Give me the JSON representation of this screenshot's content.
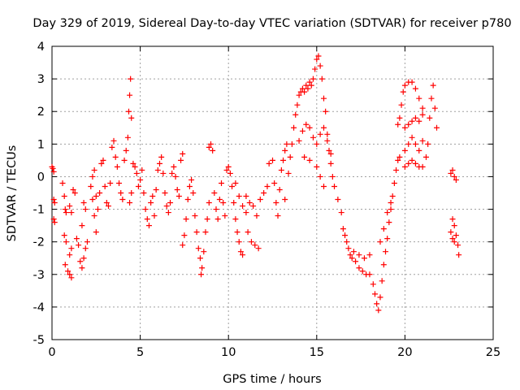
{
  "chart_data": {
    "type": "scatter",
    "title": "Day 329 of 2019, Sidereal Day-to-day VTEC variation (SDTVAR) for receiver p780",
    "xlabel": "GPS time / hours",
    "ylabel": "SDTVAR / TECUs",
    "xlim": [
      0,
      25
    ],
    "ylim": [
      -5,
      4
    ],
    "xticks": [
      0,
      5,
      10,
      15,
      20,
      25
    ],
    "yticks": [
      -5,
      -4,
      -3,
      -2,
      -1,
      0,
      1,
      2,
      3,
      4
    ],
    "xtick_labels": [
      "0",
      "5",
      "10",
      "15",
      "20",
      "25"
    ],
    "ytick_labels": [
      "-5",
      "-4",
      "-3",
      "-2",
      "-1",
      "0",
      "1",
      "2",
      "3",
      "4"
    ],
    "grid": true,
    "marker": "+",
    "color": "#ff0000",
    "series": [
      {
        "name": "SDTVAR",
        "points": [
          [
            0.0,
            0.3
          ],
          [
            0.05,
            0.25
          ],
          [
            0.1,
            0.15
          ],
          [
            0.1,
            -0.7
          ],
          [
            0.15,
            -0.8
          ],
          [
            0.1,
            -1.3
          ],
          [
            0.15,
            -1.4
          ],
          [
            0.6,
            -0.2
          ],
          [
            0.7,
            -0.6
          ],
          [
            0.75,
            -1.0
          ],
          [
            0.8,
            -1.1
          ],
          [
            0.7,
            -1.8
          ],
          [
            0.8,
            -2.0
          ],
          [
            0.75,
            -2.7
          ],
          [
            0.9,
            -2.9
          ],
          [
            1.0,
            -3.0
          ],
          [
            1.1,
            -3.1
          ],
          [
            1.0,
            -2.4
          ],
          [
            1.1,
            -2.2
          ],
          [
            1.0,
            -0.9
          ],
          [
            1.1,
            -1.1
          ],
          [
            1.2,
            -0.4
          ],
          [
            1.3,
            -0.5
          ],
          [
            1.4,
            -1.9
          ],
          [
            1.5,
            -2.1
          ],
          [
            1.6,
            -2.6
          ],
          [
            1.7,
            -2.8
          ],
          [
            1.8,
            -2.5
          ],
          [
            1.9,
            -2.2
          ],
          [
            2.0,
            -2.0
          ],
          [
            1.8,
            -0.8
          ],
          [
            1.9,
            -1.0
          ],
          [
            1.7,
            -1.5
          ],
          [
            2.2,
            -0.3
          ],
          [
            2.3,
            0.0
          ],
          [
            2.4,
            0.2
          ],
          [
            2.3,
            -0.7
          ],
          [
            2.5,
            -0.6
          ],
          [
            2.6,
            -1.0
          ],
          [
            2.4,
            -1.2
          ],
          [
            2.5,
            -1.7
          ],
          [
            2.7,
            -0.5
          ],
          [
            2.8,
            0.4
          ],
          [
            2.9,
            0.5
          ],
          [
            3.0,
            -0.3
          ],
          [
            3.1,
            -0.8
          ],
          [
            3.2,
            -0.9
          ],
          [
            3.3,
            -0.2
          ],
          [
            3.4,
            0.9
          ],
          [
            3.5,
            1.1
          ],
          [
            3.6,
            0.6
          ],
          [
            3.7,
            0.3
          ],
          [
            3.8,
            -0.2
          ],
          [
            3.9,
            -0.5
          ],
          [
            4.0,
            -0.7
          ],
          [
            4.1,
            0.5
          ],
          [
            4.2,
            0.8
          ],
          [
            4.3,
            1.2
          ],
          [
            4.35,
            2.0
          ],
          [
            4.4,
            2.5
          ],
          [
            4.45,
            3.0
          ],
          [
            4.5,
            1.8
          ],
          [
            4.4,
            -0.8
          ],
          [
            4.5,
            -0.5
          ],
          [
            4.6,
            0.4
          ],
          [
            4.7,
            0.3
          ],
          [
            4.8,
            0.1
          ],
          [
            4.9,
            -0.3
          ],
          [
            5.0,
            -0.1
          ],
          [
            5.1,
            0.2
          ],
          [
            5.2,
            -0.5
          ],
          [
            5.3,
            -1.0
          ],
          [
            5.4,
            -1.3
          ],
          [
            5.5,
            -1.5
          ],
          [
            5.6,
            -0.8
          ],
          [
            5.7,
            -0.6
          ],
          [
            5.8,
            -1.2
          ],
          [
            5.9,
            -0.4
          ],
          [
            6.0,
            0.2
          ],
          [
            6.1,
            0.4
          ],
          [
            6.2,
            0.6
          ],
          [
            6.3,
            0.1
          ],
          [
            6.4,
            -0.5
          ],
          [
            6.5,
            -0.9
          ],
          [
            6.6,
            -1.1
          ],
          [
            6.7,
            -0.8
          ],
          [
            6.8,
            0.1
          ],
          [
            6.9,
            0.3
          ],
          [
            7.0,
            0.0
          ],
          [
            7.1,
            -0.4
          ],
          [
            7.2,
            -0.6
          ],
          [
            7.3,
            0.5
          ],
          [
            7.4,
            0.7
          ],
          [
            7.4,
            -2.1
          ],
          [
            7.5,
            -1.8
          ],
          [
            7.6,
            -1.3
          ],
          [
            7.7,
            -0.7
          ],
          [
            7.8,
            -0.3
          ],
          [
            7.9,
            -0.1
          ],
          [
            8.0,
            -0.5
          ],
          [
            8.1,
            -1.2
          ],
          [
            8.2,
            -1.7
          ],
          [
            8.3,
            -2.2
          ],
          [
            8.4,
            -2.5
          ],
          [
            8.45,
            -3.0
          ],
          [
            8.5,
            -2.8
          ],
          [
            8.6,
            -2.3
          ],
          [
            8.7,
            -1.7
          ],
          [
            8.8,
            -1.3
          ],
          [
            8.9,
            -0.8
          ],
          [
            8.9,
            0.9
          ],
          [
            9.0,
            1.0
          ],
          [
            9.1,
            0.8
          ],
          [
            9.2,
            -0.5
          ],
          [
            9.3,
            -1.0
          ],
          [
            9.4,
            -1.3
          ],
          [
            9.5,
            -0.7
          ],
          [
            9.6,
            -0.2
          ],
          [
            9.7,
            -0.8
          ],
          [
            9.8,
            -1.2
          ],
          [
            9.9,
            0.2
          ],
          [
            10.0,
            0.3
          ],
          [
            10.1,
            0.1
          ],
          [
            10.2,
            -0.3
          ],
          [
            10.3,
            -0.8
          ],
          [
            10.4,
            -1.3
          ],
          [
            10.5,
            -1.7
          ],
          [
            10.6,
            -2.0
          ],
          [
            10.7,
            -2.3
          ],
          [
            10.8,
            -2.4
          ],
          [
            10.4,
            -0.2
          ],
          [
            10.6,
            -0.6
          ],
          [
            10.8,
            -0.9
          ],
          [
            11.0,
            -1.1
          ],
          [
            11.1,
            -1.7
          ],
          [
            11.3,
            -2.0
          ],
          [
            11.5,
            -2.1
          ],
          [
            11.7,
            -2.2
          ],
          [
            11.0,
            -0.6
          ],
          [
            11.2,
            -0.8
          ],
          [
            11.4,
            -0.9
          ],
          [
            11.6,
            -1.2
          ],
          [
            11.8,
            -0.7
          ],
          [
            12.0,
            -0.5
          ],
          [
            12.2,
            -0.3
          ],
          [
            12.3,
            0.4
          ],
          [
            12.5,
            0.5
          ],
          [
            12.6,
            -0.2
          ],
          [
            12.7,
            -0.8
          ],
          [
            12.8,
            -1.2
          ],
          [
            12.9,
            -0.4
          ],
          [
            13.0,
            0.2
          ],
          [
            13.1,
            0.5
          ],
          [
            13.2,
            0.8
          ],
          [
            13.3,
            1.0
          ],
          [
            13.2,
            -0.7
          ],
          [
            13.4,
            0.1
          ],
          [
            13.5,
            0.6
          ],
          [
            13.6,
            1.0
          ],
          [
            13.7,
            1.5
          ],
          [
            13.8,
            1.9
          ],
          [
            13.9,
            2.2
          ],
          [
            14.0,
            2.5
          ],
          [
            14.1,
            2.6
          ],
          [
            14.2,
            2.7
          ],
          [
            14.3,
            2.6
          ],
          [
            14.4,
            2.8
          ],
          [
            14.5,
            2.7
          ],
          [
            14.6,
            2.9
          ],
          [
            14.7,
            2.8
          ],
          [
            14.8,
            3.0
          ],
          [
            14.9,
            3.3
          ],
          [
            15.0,
            3.6
          ],
          [
            15.1,
            3.7
          ],
          [
            15.2,
            3.4
          ],
          [
            15.3,
            3.0
          ],
          [
            15.4,
            2.4
          ],
          [
            15.5,
            2.0
          ],
          [
            15.6,
            1.3
          ],
          [
            15.7,
            0.8
          ],
          [
            15.8,
            0.4
          ],
          [
            15.9,
            0.0
          ],
          [
            16.0,
            -0.3
          ],
          [
            14.0,
            1.1
          ],
          [
            14.2,
            1.4
          ],
          [
            14.4,
            1.6
          ],
          [
            14.6,
            1.5
          ],
          [
            14.8,
            1.2
          ],
          [
            15.0,
            1.0
          ],
          [
            15.2,
            1.3
          ],
          [
            15.4,
            1.5
          ],
          [
            15.6,
            1.1
          ],
          [
            15.8,
            0.7
          ],
          [
            14.3,
            0.6
          ],
          [
            14.6,
            0.5
          ],
          [
            15.0,
            0.3
          ],
          [
            15.2,
            0.0
          ],
          [
            15.4,
            -0.3
          ],
          [
            16.2,
            -0.7
          ],
          [
            16.4,
            -1.1
          ],
          [
            16.5,
            -1.6
          ],
          [
            16.6,
            -1.8
          ],
          [
            16.7,
            -2.0
          ],
          [
            16.8,
            -2.2
          ],
          [
            16.9,
            -2.4
          ],
          [
            17.0,
            -2.5
          ],
          [
            17.2,
            -2.6
          ],
          [
            17.4,
            -2.8
          ],
          [
            17.6,
            -2.9
          ],
          [
            17.8,
            -3.0
          ],
          [
            18.0,
            -3.0
          ],
          [
            17.1,
            -2.3
          ],
          [
            17.4,
            -2.4
          ],
          [
            17.7,
            -2.5
          ],
          [
            18.0,
            -2.4
          ],
          [
            18.2,
            -3.3
          ],
          [
            18.3,
            -3.6
          ],
          [
            18.4,
            -3.9
          ],
          [
            18.5,
            -4.1
          ],
          [
            18.6,
            -3.7
          ],
          [
            18.7,
            -3.2
          ],
          [
            18.8,
            -2.7
          ],
          [
            18.9,
            -2.3
          ],
          [
            19.0,
            -1.9
          ],
          [
            19.1,
            -1.4
          ],
          [
            19.2,
            -1.0
          ],
          [
            19.3,
            -0.6
          ],
          [
            18.6,
            -2.0
          ],
          [
            18.8,
            -1.6
          ],
          [
            19.0,
            -1.1
          ],
          [
            19.2,
            -0.8
          ],
          [
            19.4,
            -0.2
          ],
          [
            19.5,
            0.2
          ],
          [
            19.6,
            0.5
          ],
          [
            19.7,
            0.6
          ],
          [
            19.6,
            1.6
          ],
          [
            19.7,
            1.8
          ],
          [
            19.8,
            2.2
          ],
          [
            19.9,
            2.6
          ],
          [
            20.0,
            2.8
          ],
          [
            20.2,
            2.9
          ],
          [
            20.4,
            2.9
          ],
          [
            20.6,
            2.7
          ],
          [
            20.8,
            2.4
          ],
          [
            21.0,
            2.1
          ],
          [
            20.0,
            1.5
          ],
          [
            20.2,
            1.6
          ],
          [
            20.4,
            1.7
          ],
          [
            20.6,
            1.8
          ],
          [
            20.8,
            1.7
          ],
          [
            21.0,
            1.9
          ],
          [
            20.0,
            0.8
          ],
          [
            20.2,
            1.0
          ],
          [
            20.4,
            1.2
          ],
          [
            20.6,
            1.0
          ],
          [
            20.8,
            0.8
          ],
          [
            21.0,
            1.1
          ],
          [
            20.0,
            0.3
          ],
          [
            20.2,
            0.4
          ],
          [
            20.4,
            0.5
          ],
          [
            20.6,
            0.4
          ],
          [
            20.8,
            0.3
          ],
          [
            21.0,
            0.3
          ],
          [
            21.2,
            0.6
          ],
          [
            21.3,
            1.0
          ],
          [
            21.4,
            1.8
          ],
          [
            21.5,
            2.4
          ],
          [
            21.6,
            2.8
          ],
          [
            21.7,
            2.1
          ],
          [
            21.8,
            1.5
          ],
          [
            22.6,
            0.1
          ],
          [
            22.7,
            0.2
          ],
          [
            22.8,
            0.0
          ],
          [
            22.9,
            -0.1
          ],
          [
            22.7,
            -1.3
          ],
          [
            22.8,
            -1.5
          ],
          [
            22.9,
            -1.8
          ],
          [
            23.0,
            -2.1
          ],
          [
            23.05,
            -2.4
          ],
          [
            22.6,
            -1.7
          ],
          [
            22.7,
            -1.9
          ],
          [
            22.8,
            -2.0
          ]
        ]
      }
    ]
  }
}
